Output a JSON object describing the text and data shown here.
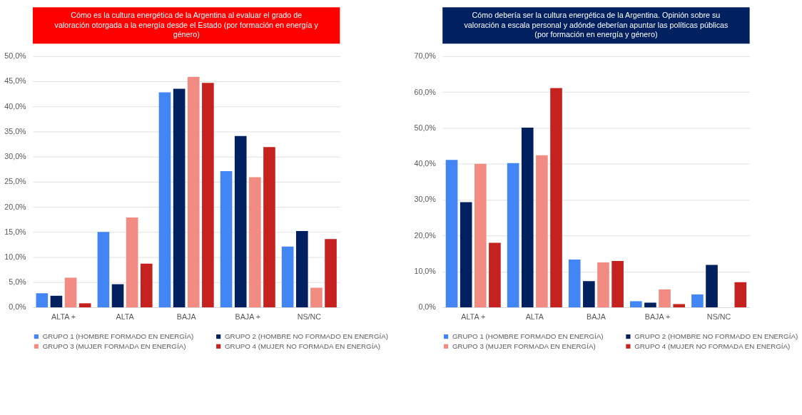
{
  "chart_data": [
    {
      "type": "bar",
      "title": "Cómo es la cultura energética de la Argentina al evaluar el grado de valoración otorgada a la energía desde el Estado (por formación en energía y género)",
      "categories": [
        "ALTA +",
        "ALTA",
        "BAJA",
        "BAJA +",
        "NS/NC"
      ],
      "series": [
        {
          "name": "GRUPO 1 (HOMBRE FORMADO EN ENERGÍA)",
          "color": "#4285f4",
          "values": [
            2.8,
            15.0,
            42.8,
            27.1,
            12.1
          ]
        },
        {
          "name": "GRUPO 2 (HOMBRE NO FORMADO EN ENERGÍA)",
          "color": "#002060",
          "values": [
            2.3,
            4.6,
            43.5,
            34.1,
            15.2
          ]
        },
        {
          "name": "GRUPO 3 (MUJER FORMADA EN ENERGÍA)",
          "color": "#f28b82",
          "values": [
            5.9,
            17.9,
            45.9,
            25.9,
            3.9
          ]
        },
        {
          "name": "GRUPO 4 (MUJER NO FORMADA EN ENERGÍA)",
          "color": "#c5221f",
          "values": [
            0.8,
            8.7,
            44.7,
            31.9,
            13.6
          ]
        }
      ],
      "ylim": [
        0,
        50
      ],
      "yticks": [
        {
          "value": 0,
          "label": "0,0%"
        },
        {
          "value": 5,
          "label": "5,0%"
        },
        {
          "value": 10,
          "label": "10,0%"
        },
        {
          "value": 15,
          "label": "15,0%"
        },
        {
          "value": 20,
          "label": "20,0%"
        },
        {
          "value": 25,
          "label": "25,0%"
        },
        {
          "value": 30,
          "label": "30,0%"
        },
        {
          "value": 35,
          "label": "35,0%"
        },
        {
          "value": 40,
          "label": "40,0%"
        },
        {
          "value": 45,
          "label": "45,0%"
        },
        {
          "value": 50,
          "label": "50,0%"
        }
      ],
      "grid": "y",
      "legend": "bottom"
    },
    {
      "type": "bar",
      "title": "Cómo debería ser la cultura energética de la Argentina. Opinión sobre su valoración a escala personal y adónde deberían apuntar las políticas públicas (por formación en energía y género)",
      "categories": [
        "ALTA +",
        "ALTA",
        "BAJA",
        "BAJA +",
        "NS/NC"
      ],
      "series": [
        {
          "name": "GRUPO 1 (HOMBRE FORMADO EN ENERGÍA)",
          "color": "#4285f4",
          "values": [
            41.1,
            40.2,
            13.3,
            1.7,
            3.6
          ]
        },
        {
          "name": "GRUPO 2 (HOMBRE NO FORMADO EN ENERGÍA)",
          "color": "#002060",
          "values": [
            29.3,
            50.1,
            7.3,
            1.3,
            11.8
          ]
        },
        {
          "name": "GRUPO 3 (MUJER FORMADA EN ENERGÍA)",
          "color": "#f28b82",
          "values": [
            40.0,
            42.4,
            12.5,
            5.0,
            0
          ]
        },
        {
          "name": "GRUPO 4 (MUJER NO FORMADA EN ENERGÍA)",
          "color": "#c5221f",
          "values": [
            18.0,
            61.1,
            12.9,
            0.9,
            7.0
          ]
        }
      ],
      "ylim": [
        0,
        70
      ],
      "yticks": [
        {
          "value": 0,
          "label": "0,0%"
        },
        {
          "value": 10,
          "label": "10,0%"
        },
        {
          "value": 20,
          "label": "20,0%"
        },
        {
          "value": 30,
          "label": "30,0%"
        },
        {
          "value": 40,
          "label": "40,0%"
        },
        {
          "value": 50,
          "label": "50,0%"
        },
        {
          "value": 60,
          "label": "60,0%"
        },
        {
          "value": 70,
          "label": "70,0%"
        }
      ],
      "grid": "y",
      "legend": "bottom"
    }
  ]
}
